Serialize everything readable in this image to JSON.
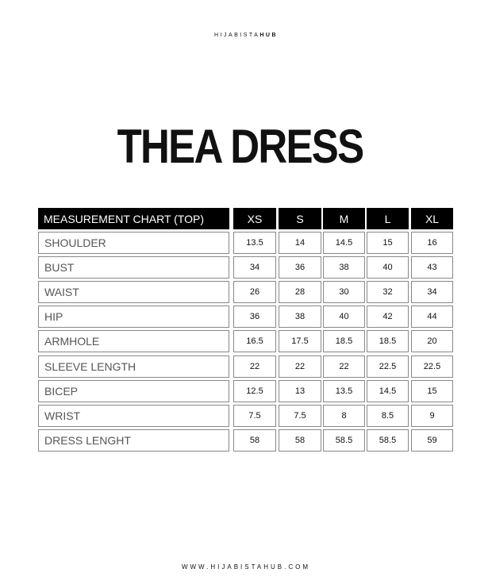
{
  "brand": {
    "prefix": "HIJABISTA",
    "suffix": "HUB"
  },
  "title": "THEA DRESS",
  "table": {
    "header": "MEASUREMENT CHART (TOP)",
    "sizes": [
      "XS",
      "S",
      "M",
      "L",
      "XL"
    ],
    "rows": [
      {
        "label": "SHOULDER",
        "values": [
          "13.5",
          "14",
          "14.5",
          "15",
          "16"
        ]
      },
      {
        "label": "BUST",
        "values": [
          "34",
          "36",
          "38",
          "40",
          "43"
        ]
      },
      {
        "label": "WAIST",
        "values": [
          "26",
          "28",
          "30",
          "32",
          "34"
        ]
      },
      {
        "label": "HIP",
        "values": [
          "36",
          "38",
          "40",
          "42",
          "44"
        ]
      },
      {
        "label": "ARMHOLE",
        "values": [
          "16.5",
          "17.5",
          "18.5",
          "18.5",
          "20"
        ]
      },
      {
        "label": "SLEEVE LENGTH",
        "values": [
          "22",
          "22",
          "22",
          "22.5",
          "22.5"
        ]
      },
      {
        "label": "BICEP",
        "values": [
          "12.5",
          "13",
          "13.5",
          "14.5",
          "15"
        ]
      },
      {
        "label": "WRIST",
        "values": [
          "7.5",
          "7.5",
          "8",
          "8.5",
          "9"
        ]
      },
      {
        "label": "DRESS LENGHT",
        "values": [
          "58",
          "58",
          "58.5",
          "58.5",
          "59"
        ]
      }
    ]
  },
  "footer": "WWW.HIJABISTAHUB.COM"
}
